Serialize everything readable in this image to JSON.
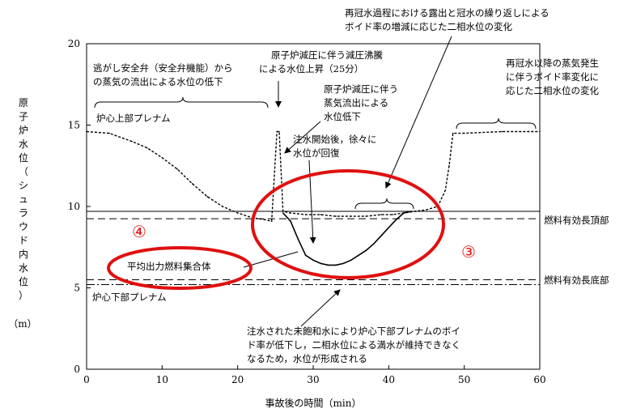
{
  "chart_data": {
    "type": "line",
    "xlabel": "事故後の時間（min）",
    "ylabel": "原子炉水位（シュラウド内水位）",
    "yunit": "（m）",
    "xlim": [
      0,
      60
    ],
    "ylim": [
      0,
      20
    ],
    "xticks": [
      "0",
      "10",
      "20",
      "30",
      "40",
      "50",
      "60"
    ],
    "yticks": [
      "0",
      "5",
      "10",
      "15",
      "20"
    ],
    "grid": false,
    "reference_lines": [
      {
        "label": "燃料有効長頂部",
        "y": 9.25,
        "style": "dashed"
      },
      {
        "label": "燃料有効長底部",
        "y": 5.5,
        "style": "dashed"
      }
    ],
    "plenum_lines": [
      {
        "label": "炉心上部プレナム",
        "y": 9.7,
        "style": "solid"
      },
      {
        "label": "炉心下部プレナム",
        "y": 5.2,
        "style": "dash-dot"
      }
    ],
    "series": [
      {
        "name": "",
        "style": "dotted",
        "x": [
          0,
          3,
          6,
          8,
          10,
          12,
          14,
          16,
          18,
          20,
          22,
          23.5,
          24.5,
          25.2,
          25.5,
          26,
          27,
          29,
          31,
          33,
          35,
          37,
          39,
          40.5,
          42,
          43.5,
          45,
          46.5,
          47.5,
          48,
          48.5,
          50,
          55,
          60
        ],
        "y": [
          14.6,
          14.5,
          14.0,
          13.6,
          13.0,
          12.3,
          11.4,
          10.6,
          10.0,
          9.6,
          9.3,
          9.2,
          9.1,
          14.6,
          14.6,
          9.7,
          9.6,
          9.5,
          9.5,
          9.4,
          9.4,
          9.4,
          9.5,
          9.5,
          9.6,
          9.7,
          9.8,
          10.0,
          11.0,
          12.5,
          14.5,
          14.5,
          14.6,
          14.6
        ]
      },
      {
        "name": "平均出力燃料集合体",
        "style": "solid",
        "x": [
          26,
          27,
          28,
          29,
          30,
          31,
          32,
          33,
          34,
          35,
          36,
          37,
          38,
          39,
          40,
          41,
          42,
          43
        ],
        "y": [
          9.6,
          9.1,
          8.0,
          7.0,
          6.7,
          6.5,
          6.4,
          6.4,
          6.5,
          6.7,
          7.0,
          7.3,
          7.7,
          8.2,
          8.7,
          9.2,
          9.6,
          9.7
        ]
      }
    ],
    "annotations": [
      {
        "id": "a1a",
        "text": "逃がし安全弁（安全弁機能）から"
      },
      {
        "id": "a1b",
        "text": "の蒸気の流出による水位の低下"
      },
      {
        "id": "a2a",
        "text": "原子炉減圧に伴う減圧沸騰"
      },
      {
        "id": "a2b",
        "text": "による水位上昇（25分）"
      },
      {
        "id": "a3a",
        "text": "原子炉減圧に伴う"
      },
      {
        "id": "a3b",
        "text": "蒸気流出による"
      },
      {
        "id": "a3c",
        "text": "水位低下"
      },
      {
        "id": "a4a",
        "text": "注水開始後，徐々に"
      },
      {
        "id": "a4b",
        "text": "水位が回復"
      },
      {
        "id": "a5a",
        "text": "再冠水過程における露出と冠水の繰り返しによる"
      },
      {
        "id": "a5b",
        "text": "ボイド率の増減に応じた二相水位の変化"
      },
      {
        "id": "a6a",
        "text": "再冠水以降の蒸気発生"
      },
      {
        "id": "a6b",
        "text": "に伴うボイド率変化に"
      },
      {
        "id": "a6c",
        "text": "応じた二相水位の変化"
      },
      {
        "id": "a7a",
        "text": "注水された未飽和水により炉心下部プレナムのボイ"
      },
      {
        "id": "a7b",
        "text": "ド率が低下し，二相水位による満水が維持できなく"
      },
      {
        "id": "a7c",
        "text": "なるため，水位が形成される"
      }
    ],
    "circle_labels": {
      "c3": "③",
      "c4": "④"
    }
  }
}
